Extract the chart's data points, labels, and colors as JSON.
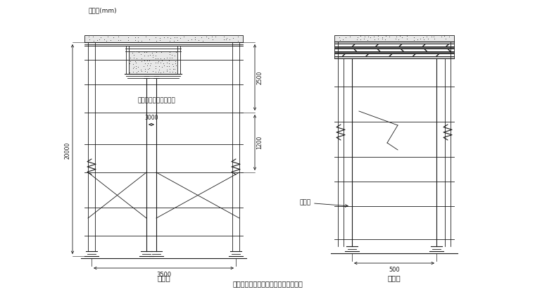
{
  "title": "多根承重立杆，木方支撑垂直于梁截面",
  "unit_label": "单位：(mm)",
  "left_label": "断面图",
  "right_label": "侧面图",
  "dim_20000": "20000",
  "dim_2500": "2500",
  "dim_1200": "1200",
  "dim_3000": "3000",
  "dim_3500": "3500",
  "dim_500": "500",
  "annotation_left": "多道承重立杆图中省略",
  "annotation_right": "双立杆",
  "line_color": "#1a1a1a",
  "bg_color": "#ffffff"
}
